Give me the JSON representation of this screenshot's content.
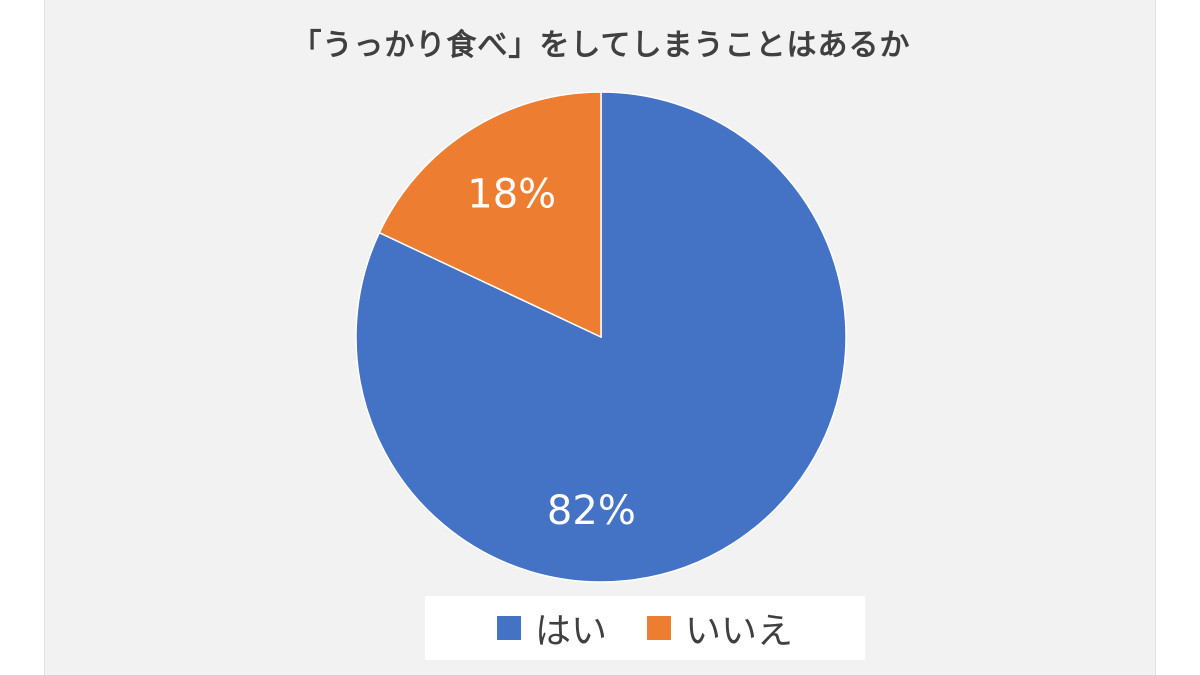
{
  "chart_data": {
    "type": "pie",
    "title": "「うっかり食べ」をしてしまうことはあるか",
    "slices": [
      {
        "name": "はい",
        "value": 82,
        "label": "82%",
        "color": "#4472C4"
      },
      {
        "name": "いいえ",
        "value": 18,
        "label": "18%",
        "color": "#ED7D31"
      }
    ],
    "legend_position": "bottom",
    "start_angle": "12 o'clock, clockwise"
  }
}
